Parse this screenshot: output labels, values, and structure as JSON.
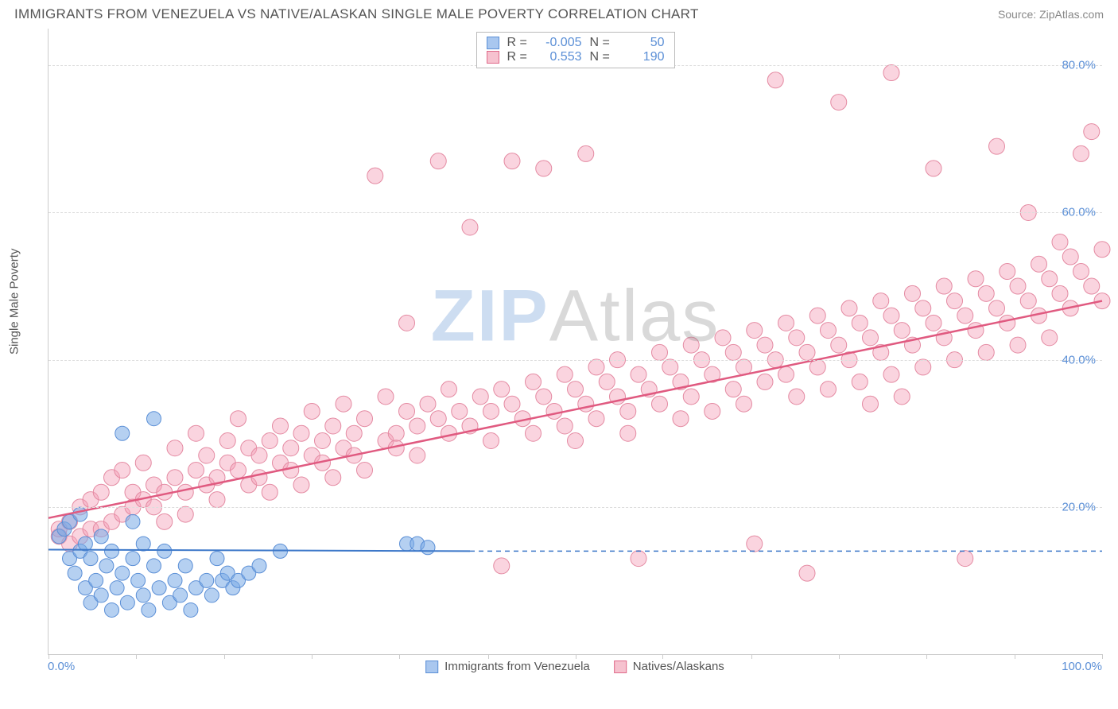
{
  "header": {
    "title": "IMMIGRANTS FROM VENEZUELA VS NATIVE/ALASKAN SINGLE MALE POVERTY CORRELATION CHART",
    "source": "Source: ZipAtlas.com"
  },
  "chart": {
    "type": "scatter",
    "ylabel": "Single Male Poverty",
    "xlim": [
      0,
      100
    ],
    "ylim": [
      0,
      85
    ],
    "xtick_min_label": "0.0%",
    "xtick_max_label": "100.0%",
    "xtick_positions": [
      0,
      8.3,
      16.7,
      25,
      33.3,
      41.7,
      50,
      58.3,
      66.7,
      75,
      83.3,
      91.7,
      100
    ],
    "yticks": [
      {
        "v": 20,
        "label": "20.0%"
      },
      {
        "v": 40,
        "label": "40.0%"
      },
      {
        "v": 60,
        "label": "60.0%"
      },
      {
        "v": 80,
        "label": "80.0%"
      }
    ],
    "grid_color": "#dddddd",
    "axis_color": "#cccccc",
    "tick_label_color": "#5b8fd6",
    "background_color": "#ffffff",
    "watermark_zip": "ZIP",
    "watermark_atlas": "Atlas",
    "legend_box": {
      "rows": [
        {
          "swatch_fill": "#a9c7ef",
          "swatch_stroke": "#5b8fd6",
          "r_label": "R =",
          "r_value": "-0.005",
          "n_label": "N =",
          "n_value": "50"
        },
        {
          "swatch_fill": "#f6c2cf",
          "swatch_stroke": "#e06a8a",
          "r_label": "R =",
          "r_value": "0.553",
          "n_label": "N =",
          "n_value": "190"
        }
      ]
    },
    "series": [
      {
        "name": "Immigrants from Venezuela",
        "marker_fill": "rgba(120,170,230,0.55)",
        "marker_stroke": "#5b8fd6",
        "marker_radius": 9,
        "line_color": "#3d78c9",
        "line_width": 2,
        "trend": {
          "x1": 0,
          "y1": 14.2,
          "x2": 40,
          "y2": 14.0,
          "dash_x1": 40,
          "dash_x2": 100,
          "dash_y": 14.0
        },
        "points": [
          [
            1,
            16
          ],
          [
            1.5,
            17
          ],
          [
            2,
            13
          ],
          [
            2,
            18
          ],
          [
            2.5,
            11
          ],
          [
            3,
            14
          ],
          [
            3,
            19
          ],
          [
            3.5,
            9
          ],
          [
            3.5,
            15
          ],
          [
            4,
            7
          ],
          [
            4,
            13
          ],
          [
            4.5,
            10
          ],
          [
            5,
            8
          ],
          [
            5,
            16
          ],
          [
            5.5,
            12
          ],
          [
            6,
            6
          ],
          [
            6,
            14
          ],
          [
            6.5,
            9
          ],
          [
            7,
            11
          ],
          [
            7,
            30
          ],
          [
            7.5,
            7
          ],
          [
            8,
            13
          ],
          [
            8,
            18
          ],
          [
            8.5,
            10
          ],
          [
            9,
            8
          ],
          [
            9,
            15
          ],
          [
            9.5,
            6
          ],
          [
            10,
            12
          ],
          [
            10,
            32
          ],
          [
            10.5,
            9
          ],
          [
            11,
            14
          ],
          [
            11.5,
            7
          ],
          [
            12,
            10
          ],
          [
            12.5,
            8
          ],
          [
            13,
            12
          ],
          [
            13.5,
            6
          ],
          [
            14,
            9
          ],
          [
            15,
            10
          ],
          [
            15.5,
            8
          ],
          [
            16,
            13
          ],
          [
            16.5,
            10
          ],
          [
            17,
            11
          ],
          [
            17.5,
            9
          ],
          [
            18,
            10
          ],
          [
            19,
            11
          ],
          [
            20,
            12
          ],
          [
            22,
            14
          ],
          [
            34,
            15
          ],
          [
            35,
            15
          ],
          [
            36,
            14.5
          ]
        ]
      },
      {
        "name": "Natives/Alaskans",
        "marker_fill": "rgba(245,160,185,0.45)",
        "marker_stroke": "#e48aa2",
        "marker_radius": 10,
        "line_color": "#e05a80",
        "line_width": 2.5,
        "trend": {
          "x1": 0,
          "y1": 18.5,
          "x2": 100,
          "y2": 48
        },
        "points": [
          [
            1,
            16
          ],
          [
            1,
            17
          ],
          [
            2,
            15
          ],
          [
            2,
            18
          ],
          [
            3,
            16
          ],
          [
            3,
            20
          ],
          [
            4,
            17
          ],
          [
            4,
            21
          ],
          [
            5,
            17
          ],
          [
            5,
            22
          ],
          [
            6,
            18
          ],
          [
            6,
            24
          ],
          [
            7,
            19
          ],
          [
            7,
            25
          ],
          [
            8,
            20
          ],
          [
            8,
            22
          ],
          [
            9,
            21
          ],
          [
            9,
            26
          ],
          [
            10,
            20
          ],
          [
            10,
            23
          ],
          [
            11,
            22
          ],
          [
            11,
            18
          ],
          [
            12,
            24
          ],
          [
            12,
            28
          ],
          [
            13,
            22
          ],
          [
            13,
            19
          ],
          [
            14,
            25
          ],
          [
            14,
            30
          ],
          [
            15,
            23
          ],
          [
            15,
            27
          ],
          [
            16,
            24
          ],
          [
            16,
            21
          ],
          [
            17,
            26
          ],
          [
            17,
            29
          ],
          [
            18,
            25
          ],
          [
            18,
            32
          ],
          [
            19,
            23
          ],
          [
            19,
            28
          ],
          [
            20,
            27
          ],
          [
            20,
            24
          ],
          [
            21,
            29
          ],
          [
            21,
            22
          ],
          [
            22,
            26
          ],
          [
            22,
            31
          ],
          [
            23,
            28
          ],
          [
            23,
            25
          ],
          [
            24,
            30
          ],
          [
            24,
            23
          ],
          [
            25,
            27
          ],
          [
            25,
            33
          ],
          [
            26,
            29
          ],
          [
            26,
            26
          ],
          [
            27,
            31
          ],
          [
            27,
            24
          ],
          [
            28,
            28
          ],
          [
            28,
            34
          ],
          [
            29,
            30
          ],
          [
            29,
            27
          ],
          [
            30,
            32
          ],
          [
            30,
            25
          ],
          [
            31,
            65
          ],
          [
            32,
            29
          ],
          [
            32,
            35
          ],
          [
            33,
            30
          ],
          [
            33,
            28
          ],
          [
            34,
            33
          ],
          [
            34,
            45
          ],
          [
            35,
            31
          ],
          [
            35,
            27
          ],
          [
            36,
            34
          ],
          [
            37,
            32
          ],
          [
            37,
            67
          ],
          [
            38,
            30
          ],
          [
            38,
            36
          ],
          [
            39,
            33
          ],
          [
            40,
            31
          ],
          [
            40,
            58
          ],
          [
            41,
            35
          ],
          [
            42,
            33
          ],
          [
            42,
            29
          ],
          [
            43,
            36
          ],
          [
            43,
            12
          ],
          [
            44,
            34
          ],
          [
            44,
            67
          ],
          [
            45,
            32
          ],
          [
            46,
            37
          ],
          [
            46,
            30
          ],
          [
            47,
            35
          ],
          [
            47,
            66
          ],
          [
            48,
            33
          ],
          [
            49,
            38
          ],
          [
            49,
            31
          ],
          [
            50,
            36
          ],
          [
            50,
            29
          ],
          [
            51,
            34
          ],
          [
            51,
            68
          ],
          [
            52,
            39
          ],
          [
            52,
            32
          ],
          [
            53,
            37
          ],
          [
            54,
            35
          ],
          [
            54,
            40
          ],
          [
            55,
            33
          ],
          [
            55,
            30
          ],
          [
            56,
            38
          ],
          [
            56,
            13
          ],
          [
            57,
            36
          ],
          [
            58,
            41
          ],
          [
            58,
            34
          ],
          [
            59,
            39
          ],
          [
            60,
            37
          ],
          [
            60,
            32
          ],
          [
            61,
            42
          ],
          [
            61,
            35
          ],
          [
            62,
            40
          ],
          [
            63,
            38
          ],
          [
            63,
            33
          ],
          [
            64,
            43
          ],
          [
            65,
            41
          ],
          [
            65,
            36
          ],
          [
            66,
            39
          ],
          [
            66,
            34
          ],
          [
            67,
            44
          ],
          [
            67,
            15
          ],
          [
            68,
            42
          ],
          [
            68,
            37
          ],
          [
            69,
            40
          ],
          [
            69,
            78
          ],
          [
            70,
            45
          ],
          [
            70,
            38
          ],
          [
            71,
            43
          ],
          [
            71,
            35
          ],
          [
            72,
            41
          ],
          [
            72,
            11
          ],
          [
            73,
            46
          ],
          [
            73,
            39
          ],
          [
            74,
            44
          ],
          [
            74,
            36
          ],
          [
            75,
            42
          ],
          [
            75,
            75
          ],
          [
            76,
            47
          ],
          [
            76,
            40
          ],
          [
            77,
            45
          ],
          [
            77,
            37
          ],
          [
            78,
            43
          ],
          [
            78,
            34
          ],
          [
            79,
            48
          ],
          [
            79,
            41
          ],
          [
            80,
            46
          ],
          [
            80,
            38
          ],
          [
            80,
            79
          ],
          [
            81,
            44
          ],
          [
            81,
            35
          ],
          [
            82,
            49
          ],
          [
            82,
            42
          ],
          [
            83,
            47
          ],
          [
            83,
            39
          ],
          [
            84,
            45
          ],
          [
            84,
            66
          ],
          [
            85,
            50
          ],
          [
            85,
            43
          ],
          [
            86,
            48
          ],
          [
            86,
            40
          ],
          [
            87,
            46
          ],
          [
            87,
            13
          ],
          [
            88,
            51
          ],
          [
            88,
            44
          ],
          [
            89,
            49
          ],
          [
            89,
            41
          ],
          [
            90,
            47
          ],
          [
            90,
            69
          ],
          [
            91,
            52
          ],
          [
            91,
            45
          ],
          [
            92,
            50
          ],
          [
            92,
            42
          ],
          [
            93,
            48
          ],
          [
            93,
            60
          ],
          [
            94,
            53
          ],
          [
            94,
            46
          ],
          [
            95,
            51
          ],
          [
            95,
            43
          ],
          [
            96,
            49
          ],
          [
            96,
            56
          ],
          [
            97,
            54
          ],
          [
            97,
            47
          ],
          [
            98,
            52
          ],
          [
            98,
            68
          ],
          [
            99,
            50
          ],
          [
            99,
            71
          ],
          [
            100,
            55
          ],
          [
            100,
            48
          ]
        ]
      }
    ],
    "bottom_legend": [
      {
        "swatch_fill": "#a9c7ef",
        "swatch_stroke": "#5b8fd6",
        "label": "Immigrants from Venezuela"
      },
      {
        "swatch_fill": "#f6c2cf",
        "swatch_stroke": "#e06a8a",
        "label": "Natives/Alaskans"
      }
    ]
  }
}
